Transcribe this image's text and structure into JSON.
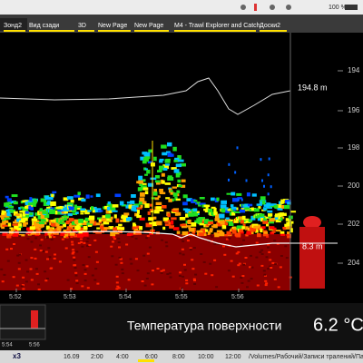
{
  "menubar": {
    "battery": "100 %"
  },
  "tabs": [
    "Зонд2",
    "Вид сзади",
    "3D",
    "New Page",
    "New Page",
    "M4 - Trawl Explorer and Catch",
    "Доски2"
  ],
  "echogram": {
    "depth_labels": [
      "194",
      "196",
      "198",
      "200",
      "202",
      "204"
    ],
    "time_labels": [
      "5:52",
      "5:53",
      "5:54",
      "5:55",
      "5:56"
    ],
    "bottom_depth": "194.8 m",
    "net_depth": "8.3 m"
  },
  "mini_chart": {
    "time_labels": [
      "5:54",
      "5:56"
    ]
  },
  "temperature": {
    "label": "Температура поверхности",
    "value": "6.2 °C"
  },
  "toolbar": {
    "zoom": "x3",
    "date": "16.09",
    "times": [
      "2:00",
      "4:00",
      "6:00",
      "8:00",
      "10:00",
      "12:00"
    ],
    "path": "/Volumes/Рабочий/Записи тралений/Па"
  }
}
